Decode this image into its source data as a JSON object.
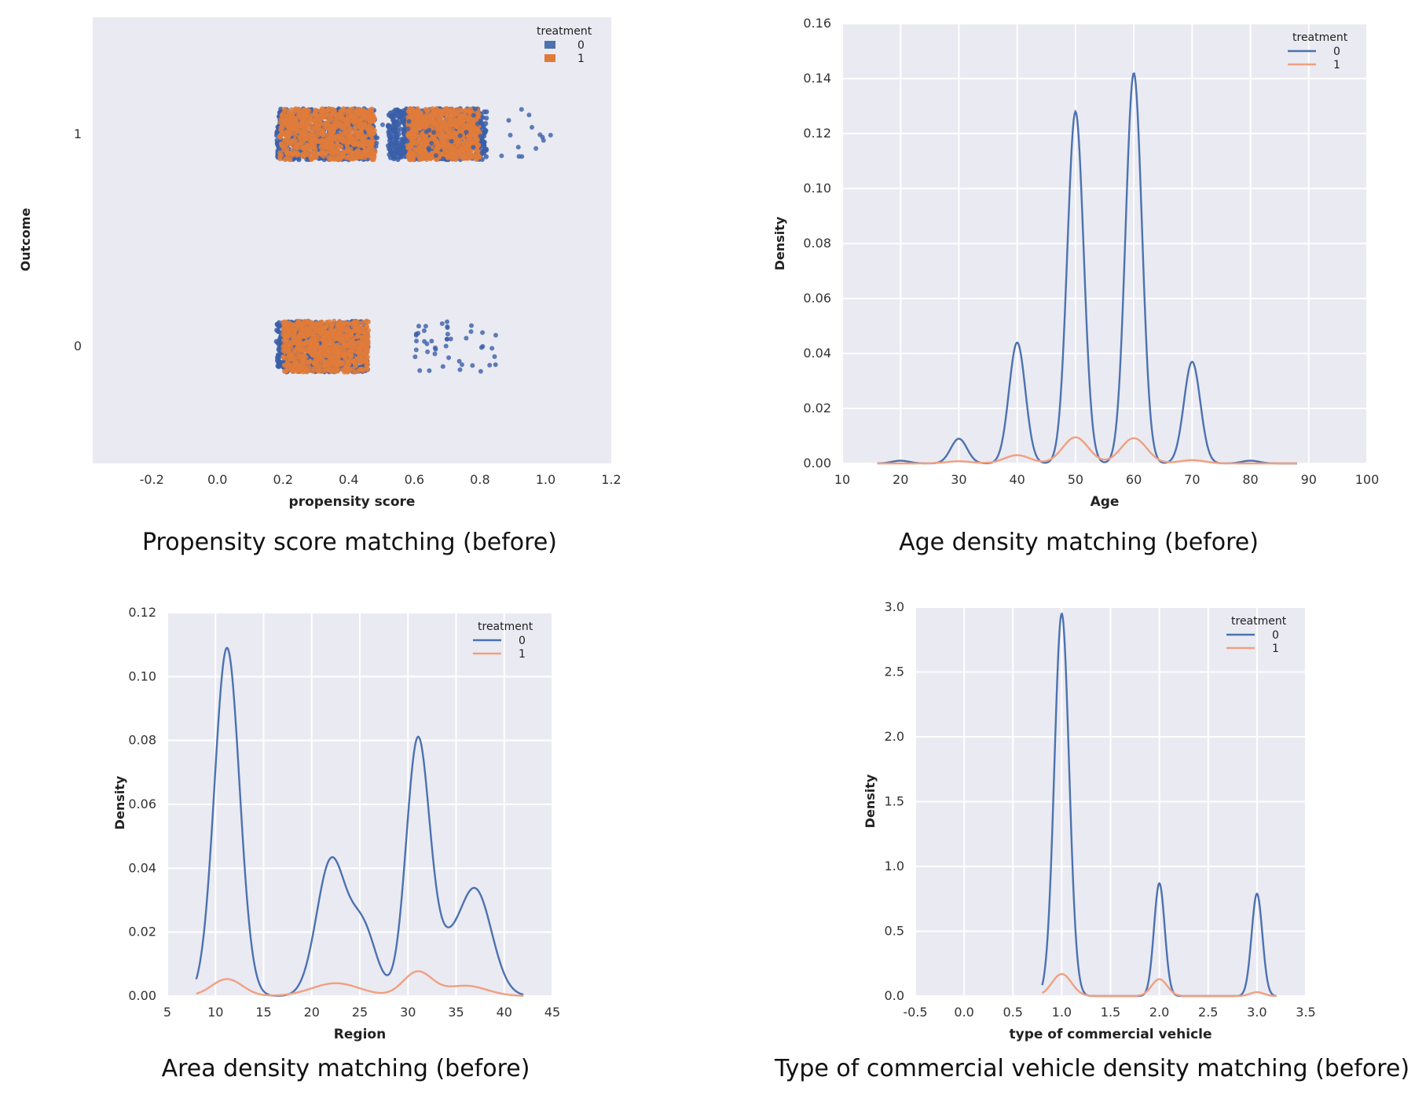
{
  "colors": {
    "panel_bg": "#EAEAF2",
    "grid": "#FFFFFF",
    "treatment_0": "#4C72B0",
    "treatment_1": "#F0A080",
    "treatment_1_points": "#E07B39",
    "treatment_0_points": "#3A5FA8"
  },
  "chart_data": [
    {
      "type": "scatter",
      "caption": "Propensity score matching (before)",
      "xlabel": "propensity score",
      "ylabel": "Outcome",
      "xlim": [
        -0.38,
        1.2
      ],
      "ylim": [
        -0.55,
        1.55
      ],
      "xticks": [
        "-0.2",
        "0.0",
        "0.2",
        "0.4",
        "0.6",
        "0.8",
        "1.0",
        "1.2"
      ],
      "xtick_values": [
        -0.2,
        0.0,
        0.2,
        0.4,
        0.6,
        0.8,
        1.0,
        1.2
      ],
      "yticks": [
        "0",
        "1"
      ],
      "ytick_values": [
        0,
        1
      ],
      "grid": false,
      "legend": {
        "title": "treatment",
        "placement": "top-right",
        "entries": [
          "0",
          "1"
        ]
      },
      "clusters": [
        {
          "outcome": 1,
          "treatment": 0,
          "x_range": [
            0.18,
            0.48
          ],
          "density": "dense"
        },
        {
          "outcome": 1,
          "treatment": 1,
          "x_range": [
            0.19,
            0.48
          ],
          "density": "dense"
        },
        {
          "outcome": 1,
          "treatment": 0,
          "x_range": [
            0.52,
            0.82
          ],
          "density": "dense"
        },
        {
          "outcome": 1,
          "treatment": 1,
          "x_range": [
            0.58,
            0.8
          ],
          "density": "dense"
        },
        {
          "outcome": 1,
          "treatment": 0,
          "x_range": [
            0.48,
            1.02
          ],
          "density": "sparse"
        },
        {
          "outcome": 0,
          "treatment": 0,
          "x_range": [
            0.18,
            0.46
          ],
          "density": "dense"
        },
        {
          "outcome": 0,
          "treatment": 1,
          "x_range": [
            0.2,
            0.46
          ],
          "density": "dense"
        },
        {
          "outcome": 0,
          "treatment": 0,
          "x_range": [
            0.6,
            0.85
          ],
          "density": "sparse"
        }
      ]
    },
    {
      "type": "line",
      "caption": "Age density matching (before)",
      "xlabel": "Age",
      "ylabel": "Density",
      "xlim": [
        10,
        100
      ],
      "ylim": [
        0,
        0.16
      ],
      "xticks": [
        "10",
        "20",
        "30",
        "40",
        "50",
        "60",
        "70",
        "80",
        "90",
        "100"
      ],
      "xtick_values": [
        10,
        20,
        30,
        40,
        50,
        60,
        70,
        80,
        90,
        100
      ],
      "yticks": [
        "0.00",
        "0.02",
        "0.04",
        "0.06",
        "0.08",
        "0.10",
        "0.12",
        "0.14",
        "0.16"
      ],
      "ytick_values": [
        0,
        0.02,
        0.04,
        0.06,
        0.08,
        0.1,
        0.12,
        0.14,
        0.16
      ],
      "grid": true,
      "legend": {
        "title": "treatment",
        "placement": "top-right",
        "entries": [
          "0",
          "1"
        ]
      },
      "series": [
        {
          "name": "0",
          "domain": [
            16,
            88
          ],
          "peaks": [
            {
              "x": 20,
              "y": 0.001,
              "w": 1.5
            },
            {
              "x": 30,
              "y": 0.009,
              "w": 1.4
            },
            {
              "x": 40,
              "y": 0.044,
              "w": 1.4
            },
            {
              "x": 50,
              "y": 0.128,
              "w": 1.4
            },
            {
              "x": 60,
              "y": 0.142,
              "w": 1.4
            },
            {
              "x": 70,
              "y": 0.037,
              "w": 1.4
            },
            {
              "x": 80,
              "y": 0.001,
              "w": 1.5
            }
          ]
        },
        {
          "name": "1",
          "domain": [
            16,
            88
          ],
          "peaks": [
            {
              "x": 30,
              "y": 0.0008,
              "w": 2.2
            },
            {
              "x": 40,
              "y": 0.003,
              "w": 2.2
            },
            {
              "x": 50,
              "y": 0.0095,
              "w": 2.2
            },
            {
              "x": 60,
              "y": 0.0092,
              "w": 2.2
            },
            {
              "x": 70,
              "y": 0.0012,
              "w": 2.2
            }
          ]
        }
      ]
    },
    {
      "type": "line",
      "caption": "Area density matching (before)",
      "xlabel": "Region",
      "ylabel": "Density",
      "xlim": [
        5,
        45
      ],
      "ylim": [
        0,
        0.12
      ],
      "xticks": [
        "5",
        "10",
        "15",
        "20",
        "25",
        "30",
        "35",
        "40",
        "45"
      ],
      "xtick_values": [
        5,
        10,
        15,
        20,
        25,
        30,
        35,
        40,
        45
      ],
      "yticks": [
        "0.00",
        "0.02",
        "0.04",
        "0.06",
        "0.08",
        "0.10",
        "0.12"
      ],
      "ytick_values": [
        0,
        0.02,
        0.04,
        0.06,
        0.08,
        0.1,
        0.12
      ],
      "grid": true,
      "legend": {
        "title": "treatment",
        "placement": "top-right",
        "entries": [
          "0",
          "1"
        ]
      },
      "series": [
        {
          "name": "0",
          "domain": [
            8,
            42
          ],
          "peaks": [
            {
              "x": 11.2,
              "y": 0.109,
              "w": 1.3
            },
            {
              "x": 22,
              "y": 0.042,
              "w": 1.5
            },
            {
              "x": 25.3,
              "y": 0.021,
              "w": 1.4
            },
            {
              "x": 31,
              "y": 0.078,
              "w": 1.2
            },
            {
              "x": 33.5,
              "y": 0.012,
              "w": 1.5
            },
            {
              "x": 37,
              "y": 0.033,
              "w": 1.7
            }
          ]
        },
        {
          "name": "1",
          "domain": [
            8,
            42
          ],
          "peaks": [
            {
              "x": 11.2,
              "y": 0.0053,
              "w": 1.6
            },
            {
              "x": 22.5,
              "y": 0.004,
              "w": 2.5
            },
            {
              "x": 31,
              "y": 0.0075,
              "w": 1.5
            },
            {
              "x": 36,
              "y": 0.0032,
              "w": 2.2
            }
          ]
        }
      ]
    },
    {
      "type": "line",
      "caption": "Type of commercial vehicle density matching (before)",
      "xlabel": "type of commercial vehicle",
      "ylabel": "Density",
      "xlim": [
        -0.5,
        3.5
      ],
      "ylim": [
        0,
        3.0
      ],
      "xticks": [
        "-0.5",
        "0.0",
        "0.5",
        "1.0",
        "1.5",
        "2.0",
        "2.5",
        "3.0",
        "3.5"
      ],
      "xtick_values": [
        -0.5,
        0.0,
        0.5,
        1.0,
        1.5,
        2.0,
        2.5,
        3.0,
        3.5
      ],
      "yticks": [
        "0.0",
        "0.5",
        "1.0",
        "1.5",
        "2.0",
        "2.5",
        "3.0"
      ],
      "ytick_values": [
        0,
        0.5,
        1.0,
        1.5,
        2.0,
        2.5,
        3.0
      ],
      "grid": true,
      "legend": {
        "title": "treatment",
        "placement": "top-right",
        "entries": [
          "0",
          "1"
        ]
      },
      "series": [
        {
          "name": "0",
          "domain": [
            0.8,
            3.2
          ],
          "peaks": [
            {
              "x": 1.0,
              "y": 2.95,
              "w": 0.075
            },
            {
              "x": 2.0,
              "y": 0.87,
              "w": 0.055
            },
            {
              "x": 3.0,
              "y": 0.79,
              "w": 0.055
            }
          ]
        },
        {
          "name": "1",
          "domain": [
            0.8,
            3.2
          ],
          "peaks": [
            {
              "x": 1.0,
              "y": 0.17,
              "w": 0.1
            },
            {
              "x": 2.0,
              "y": 0.13,
              "w": 0.08
            },
            {
              "x": 3.0,
              "y": 0.03,
              "w": 0.07
            }
          ]
        }
      ]
    }
  ]
}
